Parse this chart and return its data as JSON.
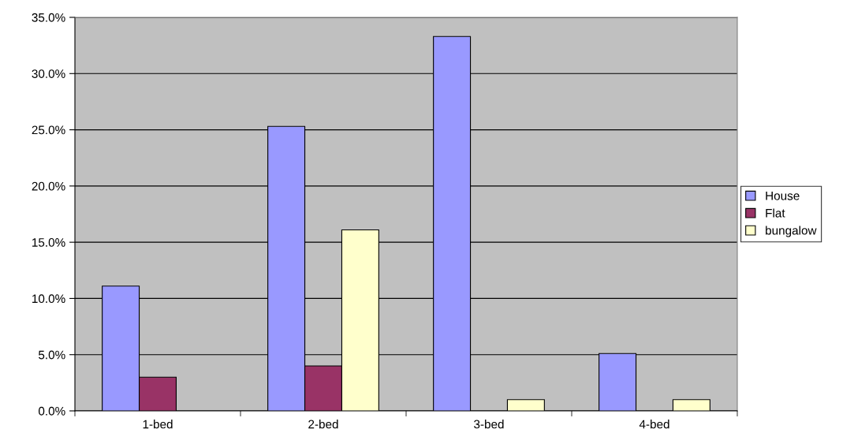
{
  "chart_data": {
    "type": "bar",
    "categories": [
      "1-bed",
      "2-bed",
      "3-bed",
      "4-bed"
    ],
    "series": [
      {
        "name": "House",
        "color": "#9999ff",
        "values": [
          11.1,
          25.3,
          33.3,
          5.1
        ]
      },
      {
        "name": "Flat",
        "color": "#993366",
        "values": [
          3.0,
          4.0,
          null,
          null
        ]
      },
      {
        "name": "bungalow",
        "color": "#ffffcc",
        "values": [
          null,
          16.1,
          1.0,
          1.0
        ]
      }
    ],
    "ylim": [
      0,
      35
    ],
    "yticks": [
      {
        "value": 0,
        "label": "0.0%"
      },
      {
        "value": 5,
        "label": "5.0%"
      },
      {
        "value": 10,
        "label": "10.0%"
      },
      {
        "value": 15,
        "label": "15.0%"
      },
      {
        "value": 20,
        "label": "20.0%"
      },
      {
        "value": 25,
        "label": "25.0%"
      },
      {
        "value": 30,
        "label": "30.0%"
      },
      {
        "value": 35,
        "label": "35.0%"
      }
    ],
    "grid": "y",
    "legend": "right"
  }
}
